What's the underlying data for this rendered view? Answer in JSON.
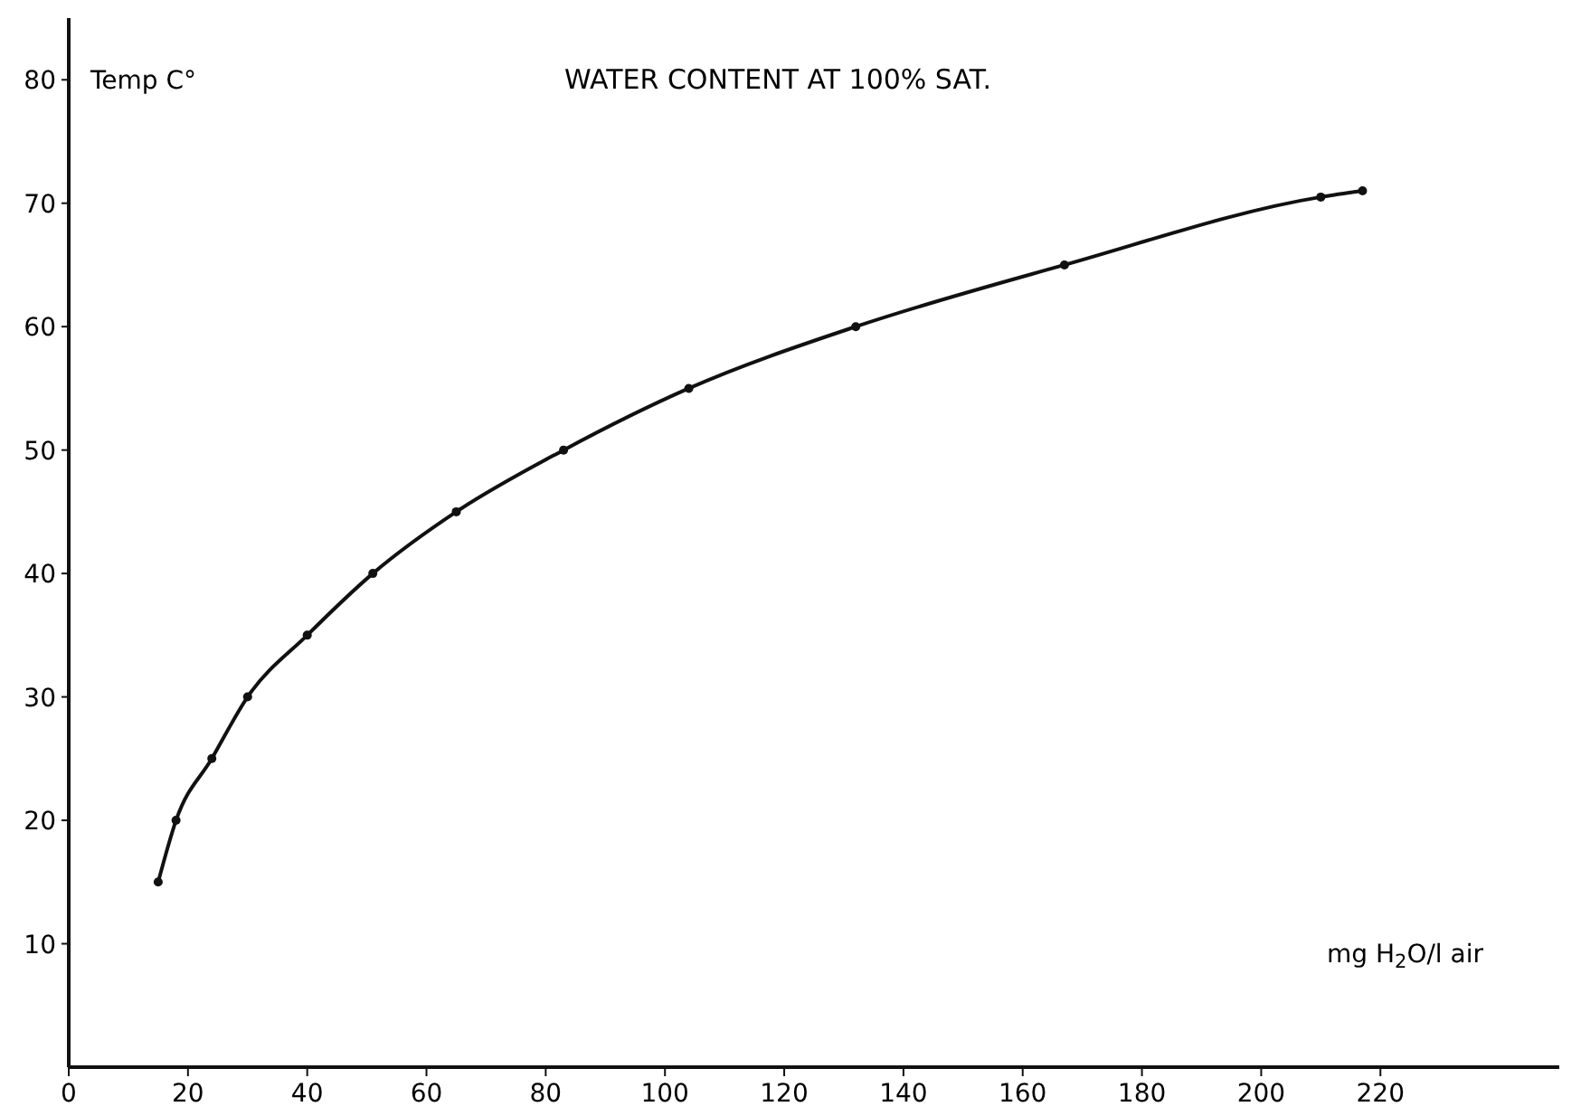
{
  "chart_data": {
    "type": "line",
    "title": "WATER CONTENT AT 100% SAT.",
    "ylabel": "Temp C°",
    "xlabel": "mg H$_{2}$O/l air",
    "series": [
      {
        "color": "#111111",
        "x": [
          15,
          18,
          24,
          30,
          40,
          51,
          65,
          83,
          104,
          132,
          167,
          210,
          217
        ],
        "values": [
          15,
          20,
          25,
          30,
          35,
          40,
          45,
          50,
          55,
          60,
          65,
          70.5,
          71
        ]
      }
    ],
    "xlim": [
      0,
      250
    ],
    "xticks": [
      0,
      20,
      40,
      60,
      80,
      100,
      120,
      140,
      160,
      180,
      200,
      220
    ],
    "ylim": [
      0,
      85
    ],
    "yticks": [
      10,
      20,
      30,
      40,
      50,
      60,
      70,
      80
    ],
    "grid": false,
    "marker": "circle",
    "line_style": "solid"
  }
}
